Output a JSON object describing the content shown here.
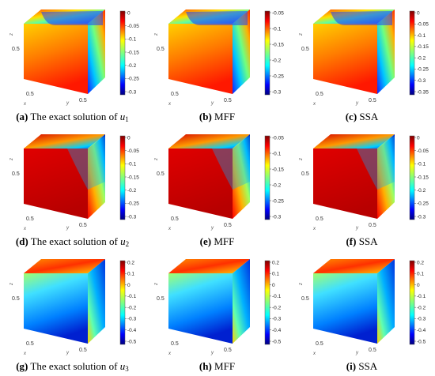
{
  "figure": {
    "panels": [
      {
        "label": "(a)",
        "text": " The exact solution of ",
        "var": "u",
        "sub": "1",
        "row": 0,
        "col": 0,
        "cb_ticks": [
          "0",
          "-0.05",
          "-0.1",
          "-0.15",
          "-0.2",
          "-0.25",
          "-0.3"
        ],
        "z_label": "z",
        "z_tick": "0.5",
        "x_label": "x",
        "y_label": "y",
        "x_tick": "0.5",
        "y_tick": "0.5"
      },
      {
        "label": "(b)",
        "text": " MFF",
        "var": "",
        "sub": "",
        "row": 0,
        "col": 1,
        "cb_ticks": [
          "-0.05",
          "-0.1",
          "-0.15",
          "-0.2",
          "-0.25",
          "-0.3"
        ],
        "z_label": "z",
        "z_tick": "0.5",
        "x_label": "x",
        "y_label": "y",
        "x_tick": "0.5",
        "y_tick": "0.5"
      },
      {
        "label": "(c)",
        "text": " SSA",
        "var": "",
        "sub": "",
        "row": 0,
        "col": 2,
        "cb_ticks": [
          "0",
          "-0.05",
          "-0.1",
          "-0.15",
          "-0.2",
          "-0.25",
          "-0.3",
          "-0.35"
        ],
        "z_label": "z",
        "z_tick": "0.5",
        "x_label": "x",
        "y_label": "y",
        "x_tick": "0.5",
        "y_tick": "0.5"
      },
      {
        "label": "(d)",
        "text": " The exact solution of ",
        "var": "u",
        "sub": "2",
        "row": 1,
        "col": 0,
        "cb_ticks": [
          "0",
          "-0.05",
          "-0.1",
          "-0.15",
          "-0.2",
          "-0.25",
          "-0.3"
        ],
        "z_label": "z",
        "z_tick": "0.5",
        "x_label": "x",
        "y_label": "y",
        "x_tick": "0.5",
        "y_tick": "0.5"
      },
      {
        "label": "(e)",
        "text": " MFF",
        "var": "",
        "sub": "",
        "row": 1,
        "col": 1,
        "cb_ticks": [
          "-0.05",
          "-0.1",
          "-0.15",
          "-0.2",
          "-0.25",
          "-0.3"
        ],
        "z_label": "z",
        "z_tick": "0.5",
        "x_label": "x",
        "y_label": "y",
        "x_tick": "0.5",
        "y_tick": "0.5"
      },
      {
        "label": "(f)",
        "text": " SSA",
        "var": "",
        "sub": "",
        "row": 1,
        "col": 2,
        "cb_ticks": [
          "0",
          "-0.05",
          "-0.1",
          "-0.15",
          "-0.2",
          "-0.25",
          "-0.3"
        ],
        "z_label": "z",
        "z_tick": "0.5",
        "x_label": "x",
        "y_label": "y",
        "x_tick": "0.5",
        "y_tick": "0.5"
      },
      {
        "label": "(g)",
        "text": " The exact solution of ",
        "var": "u",
        "sub": "3",
        "row": 2,
        "col": 0,
        "cb_ticks": [
          "0.2",
          "0.1",
          "0",
          "-0.1",
          "-0.2",
          "-0.3",
          "-0.4",
          "-0.5"
        ],
        "z_label": "z",
        "z_tick": "0.5",
        "x_label": "x",
        "y_label": "y",
        "x_tick": "0.5",
        "y_tick": "0.5"
      },
      {
        "label": "(h)",
        "text": " MFF",
        "var": "",
        "sub": "",
        "row": 2,
        "col": 1,
        "cb_ticks": [
          "0.2",
          "0.1",
          "0",
          "-0.1",
          "-0.2",
          "-0.3",
          "-0.4",
          "-0.5"
        ],
        "z_label": "z",
        "z_tick": "0.5",
        "x_label": "x",
        "y_label": "y",
        "x_tick": "0.5",
        "y_tick": "0.5"
      },
      {
        "label": "(i)",
        "text": " SSA",
        "var": "",
        "sub": "",
        "row": 2,
        "col": 2,
        "cb_ticks": [
          "0.2",
          "0.1",
          "0",
          "-0.1",
          "-0.2",
          "-0.3",
          "-0.4",
          "-0.5"
        ],
        "z_label": "z",
        "z_tick": "0.5",
        "x_label": "x",
        "y_label": "y",
        "x_tick": "0.5",
        "y_tick": "0.5"
      }
    ],
    "colormap": "jet"
  }
}
